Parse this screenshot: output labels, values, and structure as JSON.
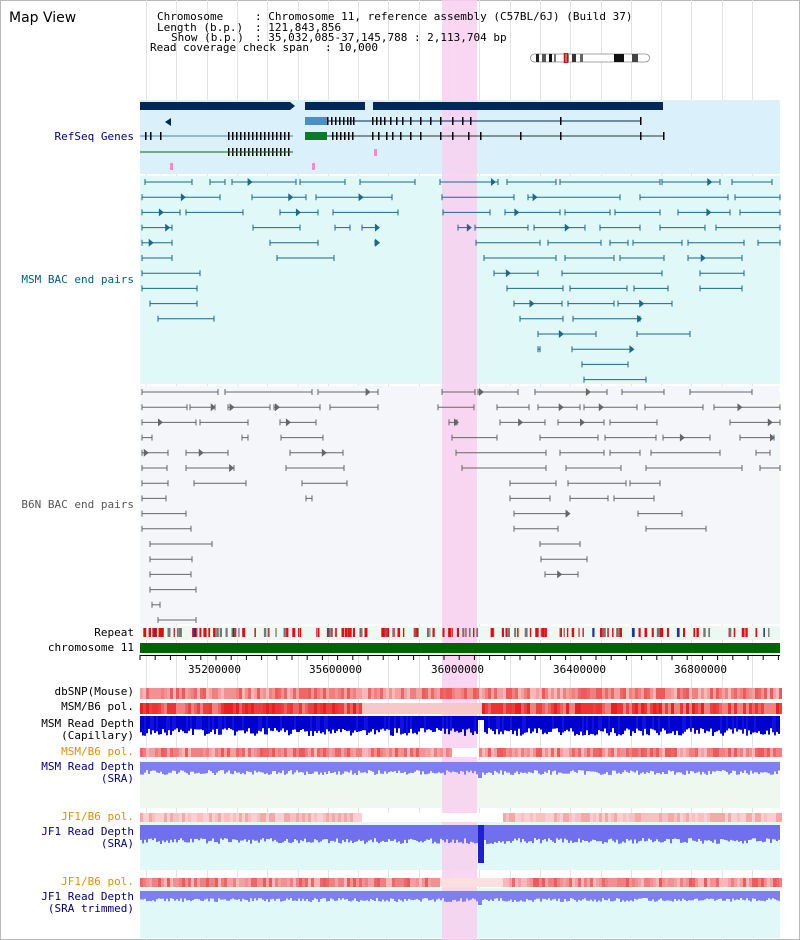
{
  "page_title": "Map View",
  "info": {
    "chromosome_key": "Chromosome",
    "chromosome_val": ": Chromosome 11, reference assembly (C57BL/6J) (Build 37)",
    "length_key": "Length (b.p.)",
    "length_val": ": 121,843,856",
    "show_key": "Show (b.p.)",
    "show_val": ": 35,032,085-37,145,788 : 2,113,704 bp",
    "coverage_key": "Read coverage check span",
    "coverage_val": ": 10,000"
  },
  "tracks": {
    "refseq": "RefSeq Genes",
    "msm_bac": "MSM BAC end pairs",
    "b6n_bac": "B6N BAC end pairs",
    "repeat": "Repeat",
    "chrom": "chromosome 11",
    "dbsnp": "dbSNP(Mouse)",
    "msm_b6_pol_1": "MSM/B6 pol.",
    "msm_depth_cap_1": "MSM Read Depth",
    "msm_depth_cap_2": "(Capillary)",
    "msm_b6_pol_2": "MSM/B6 pol.",
    "msm_depth_sra_1": "MSM Read Depth",
    "msm_depth_sra_2": "(SRA)",
    "jf1_b6_pol_1": "JF1/B6 pol.",
    "jf1_depth_sra_1": "JF1 Read Depth",
    "jf1_depth_sra_2": "(SRA)",
    "jf1_b6_pol_2": "JF1/B6 pol.",
    "jf1_depth_trim_1": "JF1 Read Depth",
    "jf1_depth_trim_2": "(SRA trimmed)"
  },
  "ruler": {
    "ticks": [
      "35200000",
      "35600000",
      "36000000",
      "36400000",
      "36800000"
    ]
  },
  "colors": {
    "refseq_label": "#000080",
    "msm_label": "#00607f",
    "b6n_label": "#555555",
    "pol_label": "#e09000",
    "depth_label": "#000080",
    "highlight": "#f8d0f0",
    "chrom_bar": "#006400"
  }
}
